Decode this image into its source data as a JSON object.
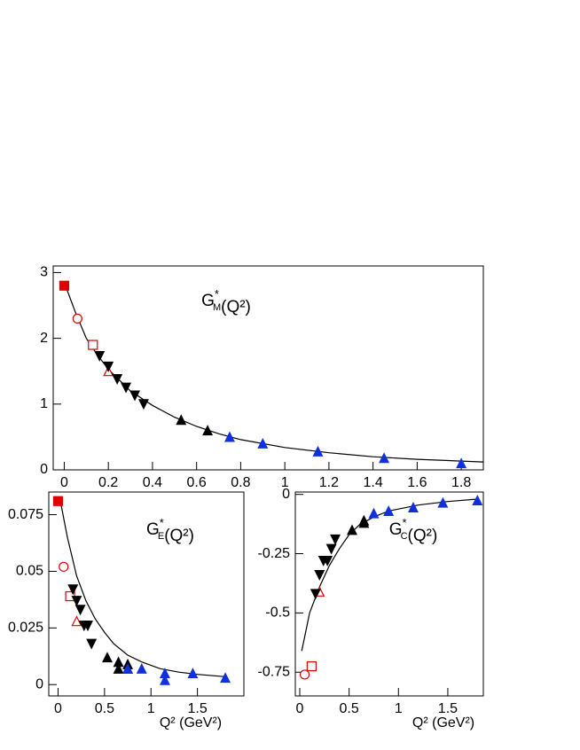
{
  "chart_data": [
    {
      "type": "scatter",
      "title": [
        {
          "text": "G"
        },
        {
          "sup": "*",
          "sub": "M"
        },
        {
          "text": "(Q²)"
        }
      ],
      "xlim": [
        -0.05,
        1.9
      ],
      "ylim": [
        0,
        3.1
      ],
      "xticks": [
        0,
        0.2,
        0.4,
        0.6,
        0.8,
        1,
        1.2,
        1.4,
        1.6,
        1.8
      ],
      "yticks": [
        0,
        1,
        2,
        3
      ],
      "series": [
        {
          "marker": "line",
          "color": "#000000",
          "x": [
            0,
            0.05,
            0.1,
            0.15,
            0.2,
            0.3,
            0.4,
            0.5,
            0.6,
            0.7,
            0.8,
            1.0,
            1.2,
            1.4,
            1.6,
            1.9
          ],
          "values": [
            2.85,
            2.4,
            2.0,
            1.75,
            1.53,
            1.2,
            0.98,
            0.8,
            0.66,
            0.55,
            0.46,
            0.34,
            0.26,
            0.2,
            0.16,
            0.12
          ]
        },
        {
          "marker": "square-filled",
          "color": "#e00000",
          "x": [
            0
          ],
          "values": [
            2.8
          ]
        },
        {
          "marker": "circle-open",
          "color": "#e00000",
          "x": [
            0.06
          ],
          "values": [
            2.3
          ]
        },
        {
          "marker": "square-open",
          "color": "#e00000",
          "x": [
            0.13
          ],
          "values": [
            1.9
          ]
        },
        {
          "marker": "triangle-open",
          "color": "#e00000",
          "x": [
            0.2
          ],
          "values": [
            1.5
          ]
        },
        {
          "marker": "triangle-down",
          "color": "#000000",
          "x": [
            0.16,
            0.2,
            0.24,
            0.28,
            0.32,
            0.36
          ],
          "values": [
            1.73,
            1.57,
            1.38,
            1.25,
            1.13,
            1.0
          ]
        },
        {
          "marker": "triangle-up",
          "color": "#000000",
          "x": [
            0.53,
            0.65
          ],
          "values": [
            0.76,
            0.6
          ]
        },
        {
          "marker": "triangle-up",
          "color": "#1030e0",
          "x": [
            0.75,
            0.9,
            1.15,
            1.45,
            1.8
          ],
          "values": [
            0.5,
            0.4,
            0.28,
            0.18,
            0.1
          ]
        }
      ]
    },
    {
      "type": "scatter",
      "title": [
        {
          "text": "G"
        },
        {
          "sup": "*",
          "sub": "E"
        },
        {
          "text": "(Q²)"
        }
      ],
      "xlabel": "Q² (GeV²)",
      "xlim": [
        -0.1,
        2.0
      ],
      "ylim": [
        -0.005,
        0.085
      ],
      "xticks": [
        0,
        0.5,
        1,
        1.5
      ],
      "yticks": [
        0,
        0.025,
        0.05,
        0.075
      ],
      "series": [
        {
          "marker": "line",
          "color": "#000000",
          "x": [
            0.02,
            0.1,
            0.2,
            0.3,
            0.4,
            0.5,
            0.6,
            0.75,
            0.9,
            1.1,
            1.3,
            1.5,
            1.8
          ],
          "values": [
            0.082,
            0.065,
            0.048,
            0.037,
            0.029,
            0.023,
            0.018,
            0.013,
            0.01,
            0.007,
            0.0055,
            0.0045,
            0.0035
          ]
        },
        {
          "marker": "square-filled",
          "color": "#e00000",
          "x": [
            0
          ],
          "values": [
            0.081
          ]
        },
        {
          "marker": "circle-open",
          "color": "#e00000",
          "x": [
            0.06
          ],
          "values": [
            0.052
          ]
        },
        {
          "marker": "square-open",
          "color": "#e00000",
          "x": [
            0.13
          ],
          "values": [
            0.039
          ]
        },
        {
          "marker": "triangle-open",
          "color": "#e00000",
          "x": [
            0.2
          ],
          "values": [
            0.028
          ]
        },
        {
          "marker": "triangle-down",
          "color": "#000000",
          "x": [
            0.16,
            0.2,
            0.24,
            0.28,
            0.32,
            0.36
          ],
          "values": [
            0.042,
            0.037,
            0.033,
            0.026,
            0.026,
            0.018
          ]
        },
        {
          "marker": "triangle-up",
          "color": "#000000",
          "x": [
            0.53,
            0.65,
            0.65,
            0.75,
            0.75
          ],
          "values": [
            0.012,
            0.01,
            0.007,
            0.009,
            0.007
          ]
        },
        {
          "marker": "triangle-up",
          "color": "#1030e0",
          "x": [
            0.75,
            0.9,
            1.15,
            1.15,
            1.45,
            1.8
          ],
          "values": [
            0.007,
            0.007,
            0.005,
            0.002,
            0.005,
            0.003
          ]
        }
      ]
    },
    {
      "type": "scatter",
      "title": [
        {
          "text": "G"
        },
        {
          "sup": "*",
          "sub": "C"
        },
        {
          "text": "(Q²)"
        }
      ],
      "xlabel": "Q² (GeV²)",
      "xlim": [
        -0.045,
        1.86
      ],
      "ylim": [
        -0.85,
        0.01
      ],
      "xticks": [
        0,
        0.5,
        1,
        1.5
      ],
      "yticks": [
        0,
        -0.25,
        -0.5,
        -0.75
      ],
      "series": [
        {
          "marker": "line",
          "color": "#000000",
          "x": [
            0.02,
            0.05,
            0.1,
            0.2,
            0.3,
            0.4,
            0.5,
            0.6,
            0.75,
            0.9,
            1.2,
            1.5,
            1.8
          ],
          "values": [
            -0.66,
            -0.6,
            -0.5,
            -0.39,
            -0.3,
            -0.23,
            -0.17,
            -0.13,
            -0.095,
            -0.07,
            -0.045,
            -0.03,
            -0.02
          ]
        },
        {
          "marker": "circle-open",
          "color": "#e00000",
          "x": [
            0.05
          ],
          "values": [
            -0.76
          ]
        },
        {
          "marker": "square-open",
          "color": "#e00000",
          "x": [
            0.12
          ],
          "values": [
            -0.725
          ]
        },
        {
          "marker": "triangle-open",
          "color": "#e00000",
          "x": [
            0.2
          ],
          "values": [
            -0.41
          ]
        },
        {
          "marker": "triangle-down",
          "color": "#000000",
          "x": [
            0.16,
            0.2,
            0.24,
            0.28,
            0.32,
            0.36
          ],
          "values": [
            -0.42,
            -0.34,
            -0.28,
            -0.28,
            -0.23,
            -0.19
          ]
        },
        {
          "marker": "triangle-up",
          "color": "#000000",
          "x": [
            0.53,
            0.65,
            0.65
          ],
          "values": [
            -0.15,
            -0.12,
            -0.11
          ]
        },
        {
          "marker": "triangle-up",
          "color": "#1030e0",
          "x": [
            0.75,
            0.9,
            1.15,
            1.45,
            1.8
          ],
          "values": [
            -0.08,
            -0.07,
            -0.055,
            -0.035,
            -0.025
          ]
        }
      ]
    }
  ]
}
